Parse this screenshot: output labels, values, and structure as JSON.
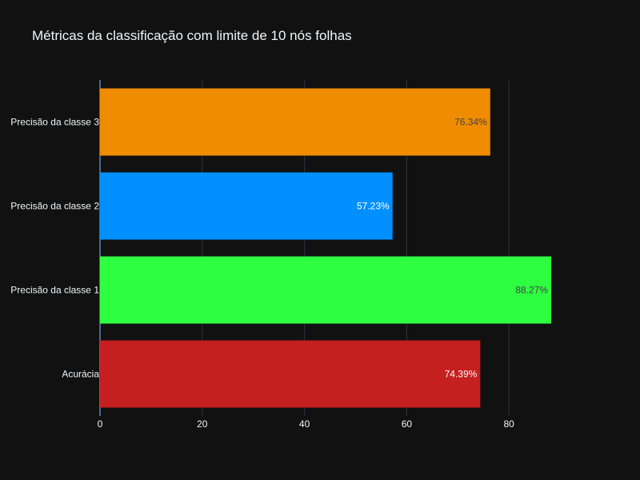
{
  "chart_data": {
    "type": "bar",
    "orientation": "horizontal",
    "title": "Métricas da classificação com limite de 10 nós folhas",
    "xlabel": "",
    "ylabel": "",
    "categories": [
      "Acurácia",
      "Precisão da classe 1",
      "Precisão da classe 2",
      "Precisão da classe 3"
    ],
    "values": [
      74.39,
      88.27,
      57.23,
      76.34
    ],
    "value_labels": [
      "74.39%",
      "88.27%",
      "57.23%",
      "76.34%"
    ],
    "colors": [
      "#c51f1f",
      "#2eff40",
      "#0090ff",
      "#f08c00"
    ],
    "label_colors": [
      "#ffffff",
      "#444444",
      "#ffffff",
      "#444444"
    ],
    "xlim": [
      0,
      93.9
    ],
    "x_ticks": [
      0,
      20,
      40,
      60,
      80
    ],
    "x_tick_labels": [
      "0",
      "20",
      "40",
      "60",
      "80"
    ],
    "grid": true,
    "background": "#111111",
    "grid_color": "#283442",
    "text_color": "#f2f5fa"
  }
}
